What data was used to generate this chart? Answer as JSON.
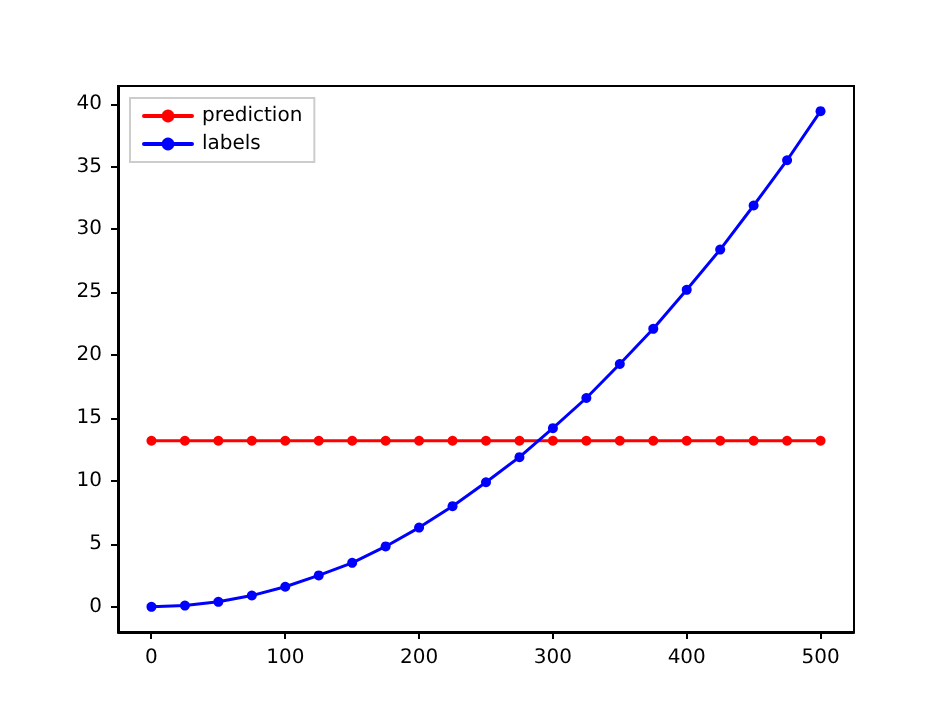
{
  "chart_data": {
    "type": "line",
    "x": [
      0,
      25,
      50,
      75,
      100,
      125,
      150,
      175,
      200,
      225,
      250,
      275,
      300,
      325,
      350,
      375,
      400,
      425,
      450,
      475,
      500
    ],
    "series": [
      {
        "name": "prediction",
        "color": "#ff0000",
        "values": [
          13.2,
          13.2,
          13.2,
          13.2,
          13.2,
          13.2,
          13.2,
          13.2,
          13.2,
          13.2,
          13.2,
          13.2,
          13.2,
          13.2,
          13.2,
          13.2,
          13.2,
          13.2,
          13.2,
          13.2,
          13.2
        ]
      },
      {
        "name": "labels",
        "color": "#0000ff",
        "values": [
          0,
          0.1,
          0.4,
          0.9,
          1.6,
          2.5,
          3.5,
          4.8,
          6.3,
          8.0,
          9.9,
          11.9,
          14.2,
          16.6,
          19.3,
          22.1,
          25.2,
          28.4,
          31.9,
          35.5,
          39.4
        ]
      }
    ],
    "xlim": [
      -25,
      525
    ],
    "xticks": [
      0,
      100,
      200,
      300,
      400,
      500
    ],
    "ylim": [
      -2,
      41.4
    ],
    "yticks": [
      0,
      5,
      10,
      15,
      20,
      25,
      30,
      35,
      40
    ],
    "grid": false,
    "legend": "top left",
    "marker": "circle",
    "line_style": "solid"
  }
}
